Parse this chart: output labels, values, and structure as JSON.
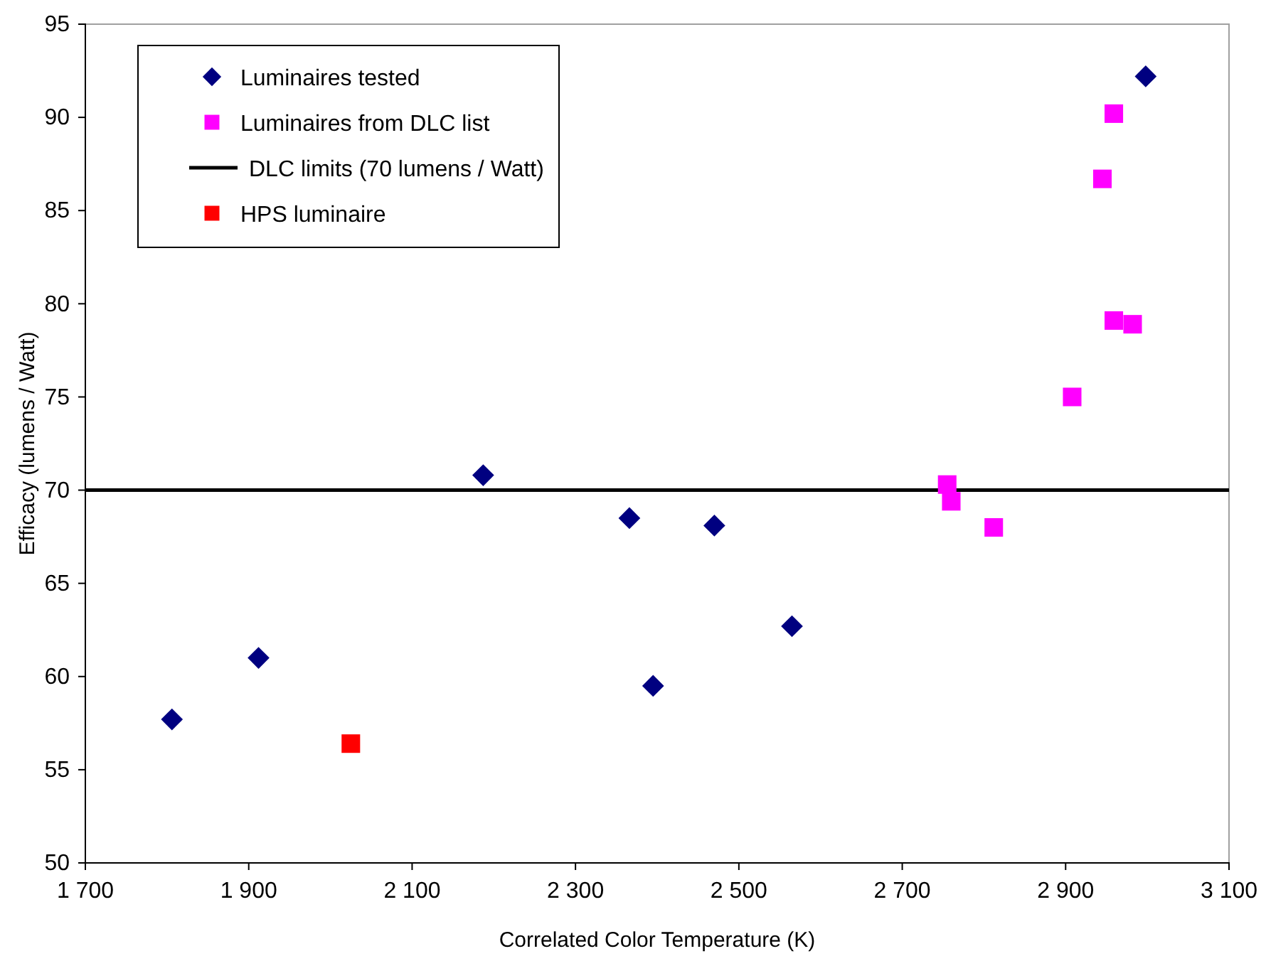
{
  "chart_data": {
    "type": "scatter",
    "xlabel": "Correlated Color Temperature (K)",
    "ylabel": "Efficacy (lumens / Watt)",
    "xlim": [
      1700,
      3100
    ],
    "xticks": [
      {
        "value": 1700,
        "label": "1 700"
      },
      {
        "value": 1900,
        "label": "1 900"
      },
      {
        "value": 2100,
        "label": "2 100"
      },
      {
        "value": 2300,
        "label": "2 300"
      },
      {
        "value": 2500,
        "label": "2 500"
      },
      {
        "value": 2700,
        "label": "2 700"
      },
      {
        "value": 2900,
        "label": "2 900"
      },
      {
        "value": 3100,
        "label": "3 100"
      }
    ],
    "ylim": [
      50,
      95
    ],
    "yticks": [
      50,
      55,
      60,
      65,
      70,
      75,
      80,
      85,
      90,
      95
    ],
    "grid": false,
    "legend": "top left",
    "series": [
      {
        "name": "Luminaires tested",
        "color": "#000080",
        "marker": "diamond",
        "x": [
          1806,
          1912,
          2187,
          2366,
          2395,
          2470,
          2565,
          2998
        ],
        "values": [
          57.7,
          61.0,
          70.8,
          68.5,
          59.5,
          68.1,
          62.7,
          92.2
        ]
      },
      {
        "name": "Luminaires from DLC list",
        "color": "#ff00ff",
        "marker": "square",
        "x": [
          2755,
          2760,
          2812,
          2908,
          2945,
          2959,
          2959,
          2982
        ],
        "values": [
          70.3,
          69.4,
          68.0,
          75.0,
          86.7,
          90.2,
          79.1,
          78.9
        ]
      },
      {
        "name": "HPS luminaire",
        "color": "#ff0000",
        "marker": "square",
        "x": [
          2025
        ],
        "values": [
          56.4
        ]
      }
    ],
    "ref_lines": [
      {
        "axis": "y",
        "value": 70,
        "label": "DLC limits (70 lumens / Watt)",
        "color": "#000000",
        "line_style": "solid"
      }
    ]
  }
}
